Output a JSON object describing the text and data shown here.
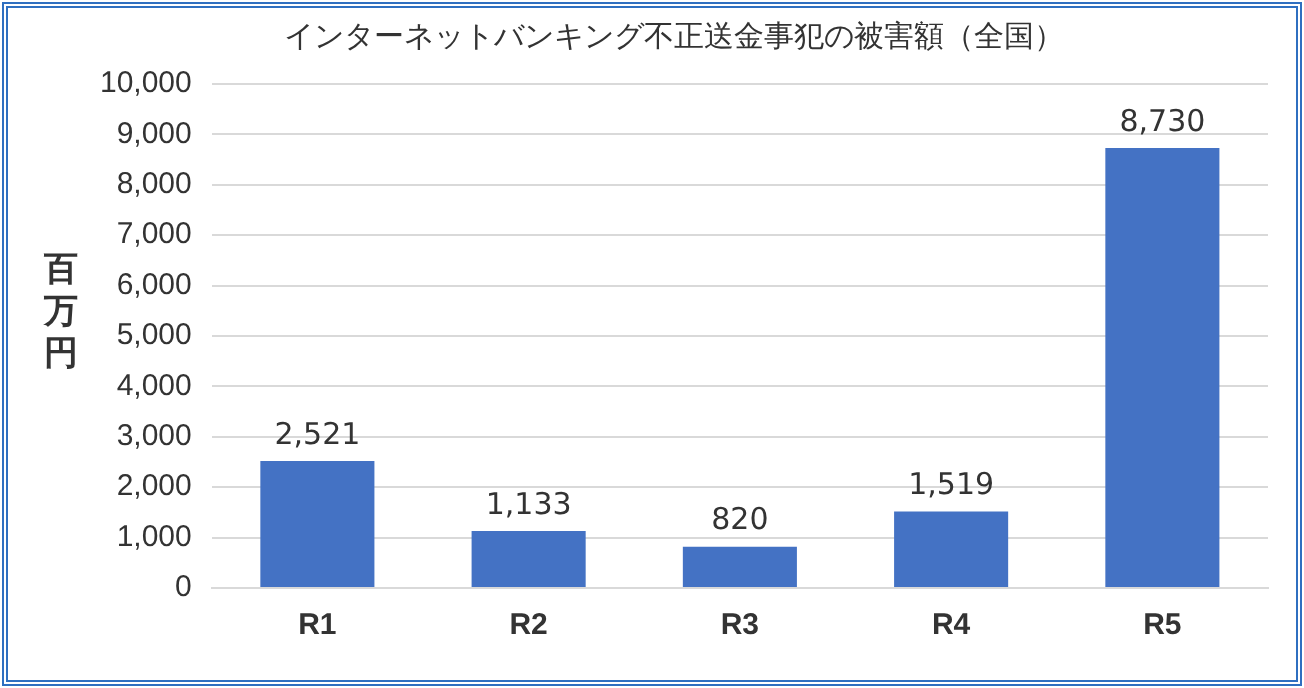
{
  "chart_data": {
    "type": "bar",
    "title": "インターネットバンキング不正送金事犯の被害額（全国）",
    "ylabel": "百万円",
    "categories": [
      "R1",
      "R2",
      "R3",
      "R4",
      "R5"
    ],
    "values": [
      2521,
      1133,
      820,
      1519,
      8730
    ],
    "value_labels": [
      "2,521",
      "1,133",
      "820",
      "1,519",
      "8,730"
    ],
    "color": "#4472c4",
    "ylim": [
      0,
      10000
    ],
    "yticks": [
      0,
      {
        "value": 1000,
        "label": "1,000"
      },
      {
        "value": 2000,
        "label": "2,000"
      },
      {
        "value": 3000,
        "label": "3,000"
      },
      {
        "value": 4000,
        "label": "4,000"
      },
      {
        "value": 5000,
        "label": "5,000"
      },
      {
        "value": 6000,
        "label": "6,000"
      },
      {
        "value": 7000,
        "label": "7,000"
      },
      {
        "value": 8000,
        "label": "8,000"
      },
      {
        "value": 9000,
        "label": "9,000"
      },
      {
        "value": 10000,
        "label": "10,000"
      }
    ],
    "grid": "y"
  }
}
